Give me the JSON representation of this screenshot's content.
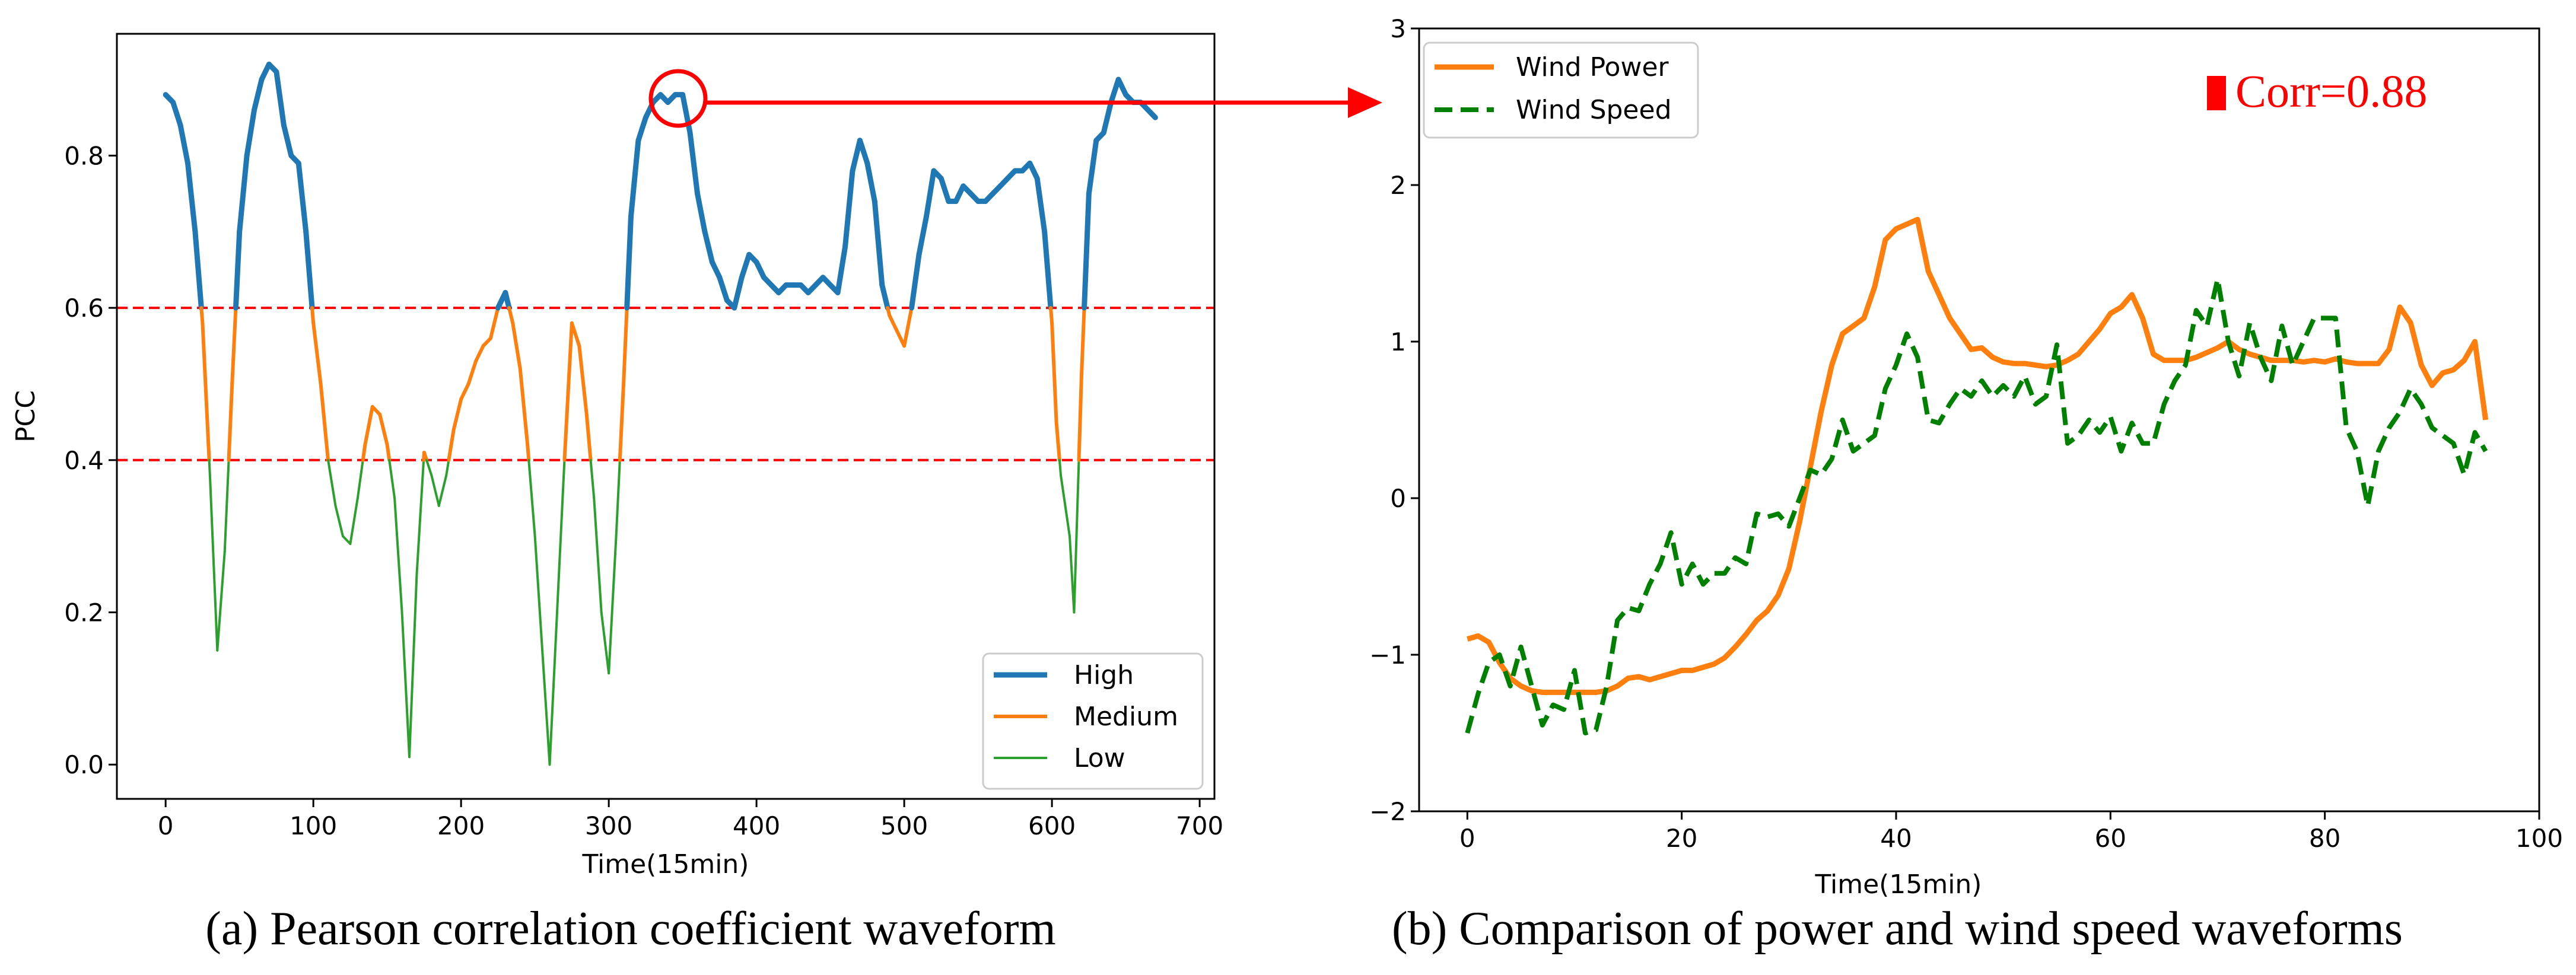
{
  "chart_data": [
    {
      "type": "line",
      "caption": "(a) Pearson correlation coefficient waveform",
      "xlabel": "Time(15min)",
      "ylabel": "PCC",
      "xlim": [
        -33,
        710
      ],
      "ylim": [
        -0.045,
        0.96
      ],
      "xticks": [
        "0",
        "100",
        "200",
        "300",
        "400",
        "500",
        "600",
        "700"
      ],
      "yticks": [
        "0.0",
        "0.2",
        "0.4",
        "0.6",
        "0.8"
      ],
      "thresholds": [
        0.6,
        0.4
      ],
      "threshold_color": "#ff0000",
      "legend_position": "lower-right",
      "legend": [
        {
          "label": "High",
          "color": "#1f77b4"
        },
        {
          "label": "Medium",
          "color": "#ff7f0e"
        },
        {
          "label": "Low",
          "color": "#2ca02c"
        }
      ],
      "x": [
        0,
        5,
        10,
        15,
        20,
        25,
        30,
        35,
        40,
        45,
        50,
        55,
        60,
        65,
        70,
        75,
        80,
        85,
        90,
        95,
        100,
        105,
        110,
        115,
        120,
        125,
        130,
        135,
        140,
        145,
        150,
        155,
        160,
        165,
        170,
        175,
        180,
        185,
        190,
        195,
        200,
        205,
        210,
        215,
        220,
        225,
        230,
        235,
        240,
        245,
        250,
        255,
        260,
        265,
        270,
        275,
        280,
        285,
        290,
        295,
        300,
        305,
        310,
        315,
        320,
        325,
        330,
        335,
        340,
        345,
        350,
        355,
        360,
        365,
        370,
        375,
        380,
        385,
        390,
        395,
        400,
        405,
        410,
        415,
        420,
        425,
        430,
        435,
        440,
        445,
        450,
        455,
        460,
        465,
        470,
        475,
        480,
        485,
        490,
        495,
        500,
        505,
        510,
        515,
        520,
        525,
        530,
        535,
        540,
        545,
        550,
        555,
        560,
        565,
        570,
        575,
        580,
        585,
        590,
        595,
        600,
        603,
        606,
        609,
        612,
        615,
        620,
        625,
        630,
        635,
        640,
        645,
        650,
        655,
        660,
        665,
        670
      ],
      "values": [
        0.88,
        0.87,
        0.84,
        0.79,
        0.7,
        0.58,
        0.38,
        0.15,
        0.28,
        0.5,
        0.7,
        0.8,
        0.86,
        0.9,
        0.92,
        0.91,
        0.84,
        0.8,
        0.79,
        0.7,
        0.58,
        0.5,
        0.4,
        0.34,
        0.3,
        0.29,
        0.35,
        0.42,
        0.47,
        0.46,
        0.42,
        0.35,
        0.2,
        0.01,
        0.25,
        0.41,
        0.38,
        0.34,
        0.38,
        0.44,
        0.48,
        0.5,
        0.53,
        0.55,
        0.56,
        0.6,
        0.62,
        0.58,
        0.52,
        0.42,
        0.3,
        0.15,
        0.0,
        0.2,
        0.4,
        0.58,
        0.55,
        0.46,
        0.35,
        0.2,
        0.12,
        0.3,
        0.5,
        0.72,
        0.82,
        0.85,
        0.87,
        0.88,
        0.87,
        0.88,
        0.88,
        0.83,
        0.75,
        0.7,
        0.66,
        0.64,
        0.61,
        0.6,
        0.64,
        0.67,
        0.66,
        0.64,
        0.63,
        0.62,
        0.63,
        0.63,
        0.63,
        0.62,
        0.63,
        0.64,
        0.63,
        0.62,
        0.68,
        0.78,
        0.82,
        0.79,
        0.74,
        0.63,
        0.59,
        0.57,
        0.55,
        0.6,
        0.67,
        0.72,
        0.78,
        0.77,
        0.74,
        0.74,
        0.76,
        0.75,
        0.74,
        0.74,
        0.75,
        0.76,
        0.77,
        0.78,
        0.78,
        0.79,
        0.77,
        0.7,
        0.58,
        0.45,
        0.38,
        0.34,
        0.3,
        0.2,
        0.51,
        0.75,
        0.82,
        0.83,
        0.87,
        0.9,
        0.88,
        0.87,
        0.87,
        0.86,
        0.85
      ]
    },
    {
      "type": "line",
      "caption": "(b) Comparison of power and wind speed waveforms",
      "xlabel": "Time(15min)",
      "ylabel": "",
      "xlim": [
        -4.5,
        100
      ],
      "ylim": [
        -2,
        3
      ],
      "xticks": [
        "0",
        "20",
        "40",
        "60",
        "80",
        "100"
      ],
      "yticks": [
        "−2",
        "−1",
        "0",
        "1",
        "2",
        "3"
      ],
      "annotation": "Corr=0.88",
      "annotation_color": "#ff0000",
      "legend_position": "top-left",
      "series": [
        {
          "name": "Wind Power",
          "color": "#ff7f0e",
          "style": "solid",
          "x": [
            0,
            1,
            2,
            3,
            4,
            5,
            6,
            7,
            8,
            9,
            10,
            11,
            12,
            13,
            14,
            15,
            16,
            17,
            18,
            19,
            20,
            21,
            22,
            23,
            24,
            25,
            26,
            27,
            28,
            29,
            30,
            31,
            32,
            33,
            34,
            35,
            36,
            37,
            38,
            39,
            40,
            41,
            42,
            43,
            44,
            45,
            46,
            47,
            48,
            49,
            50,
            51,
            52,
            53,
            54,
            55,
            56,
            57,
            58,
            59,
            60,
            61,
            62,
            63,
            64,
            65,
            66,
            67,
            68,
            69,
            70,
            71,
            72,
            73,
            74,
            75,
            76,
            77,
            78,
            79,
            80,
            81,
            82,
            83,
            84,
            85,
            86,
            87,
            88,
            89,
            90,
            91,
            92,
            93,
            94,
            95
          ],
          "values": [
            -0.9,
            -0.88,
            -0.92,
            -1.05,
            -1.15,
            -1.2,
            -1.23,
            -1.24,
            -1.24,
            -1.24,
            -1.24,
            -1.24,
            -1.24,
            -1.23,
            -1.2,
            -1.15,
            -1.14,
            -1.16,
            -1.14,
            -1.12,
            -1.1,
            -1.1,
            -1.08,
            -1.06,
            -1.02,
            -0.95,
            -0.87,
            -0.78,
            -0.72,
            -0.62,
            -0.45,
            -0.15,
            0.2,
            0.55,
            0.85,
            1.05,
            1.1,
            1.15,
            1.35,
            1.65,
            1.72,
            1.75,
            1.78,
            1.45,
            1.3,
            1.15,
            1.05,
            0.95,
            0.96,
            0.9,
            0.87,
            0.86,
            0.86,
            0.85,
            0.84,
            0.85,
            0.88,
            0.92,
            1.0,
            1.08,
            1.18,
            1.22,
            1.3,
            1.15,
            0.92,
            0.88,
            0.88,
            0.88,
            0.9,
            0.93,
            0.96,
            1.0,
            0.95,
            0.92,
            0.9,
            0.88,
            0.88,
            0.88,
            0.87,
            0.88,
            0.87,
            0.89,
            0.87,
            0.86,
            0.86,
            0.86,
            0.95,
            1.22,
            1.12,
            0.85,
            0.72,
            0.8,
            0.82,
            0.88,
            1.0,
            0.5
          ]
        },
        {
          "name": "Wind Speed",
          "color": "#008000",
          "style": "dashed",
          "x": [
            0,
            1,
            2,
            3,
            4,
            5,
            6,
            7,
            8,
            9,
            10,
            11,
            12,
            13,
            14,
            15,
            16,
            17,
            18,
            19,
            20,
            21,
            22,
            23,
            24,
            25,
            26,
            27,
            28,
            29,
            30,
            31,
            32,
            33,
            34,
            35,
            36,
            37,
            38,
            39,
            40,
            41,
            42,
            43,
            44,
            45,
            46,
            47,
            48,
            49,
            50,
            51,
            52,
            53,
            54,
            55,
            56,
            57,
            58,
            59,
            60,
            61,
            62,
            63,
            64,
            65,
            66,
            67,
            68,
            69,
            70,
            71,
            72,
            73,
            74,
            75,
            76,
            77,
            78,
            79,
            80,
            81,
            82,
            83,
            84,
            85,
            86,
            87,
            88,
            89,
            90,
            91,
            92,
            93,
            94,
            95
          ],
          "values": [
            -1.5,
            -1.25,
            -1.05,
            -1.0,
            -1.2,
            -0.95,
            -1.2,
            -1.45,
            -1.32,
            -1.35,
            -1.1,
            -1.5,
            -1.48,
            -1.2,
            -0.78,
            -0.7,
            -0.72,
            -0.55,
            -0.42,
            -0.22,
            -0.55,
            -0.42,
            -0.55,
            -0.48,
            -0.48,
            -0.38,
            -0.42,
            -0.1,
            -0.12,
            -0.1,
            -0.18,
            0.0,
            0.18,
            0.15,
            0.25,
            0.5,
            0.3,
            0.35,
            0.4,
            0.7,
            0.85,
            1.05,
            0.9,
            0.5,
            0.48,
            0.6,
            0.7,
            0.65,
            0.75,
            0.65,
            0.72,
            0.65,
            0.78,
            0.6,
            0.65,
            0.98,
            0.35,
            0.4,
            0.5,
            0.42,
            0.52,
            0.3,
            0.48,
            0.35,
            0.35,
            0.6,
            0.75,
            0.85,
            1.2,
            1.1,
            1.4,
            1.0,
            0.78,
            1.12,
            0.9,
            0.75,
            1.1,
            0.85,
            1.0,
            1.15,
            1.15,
            1.15,
            0.45,
            0.3,
            -0.05,
            0.3,
            0.45,
            0.55,
            0.7,
            0.6,
            0.45,
            0.4,
            0.35,
            0.15,
            0.42,
            0.3
          ]
        }
      ]
    }
  ],
  "colors": {
    "axis": "#000000",
    "marker": "#ff0000"
  }
}
